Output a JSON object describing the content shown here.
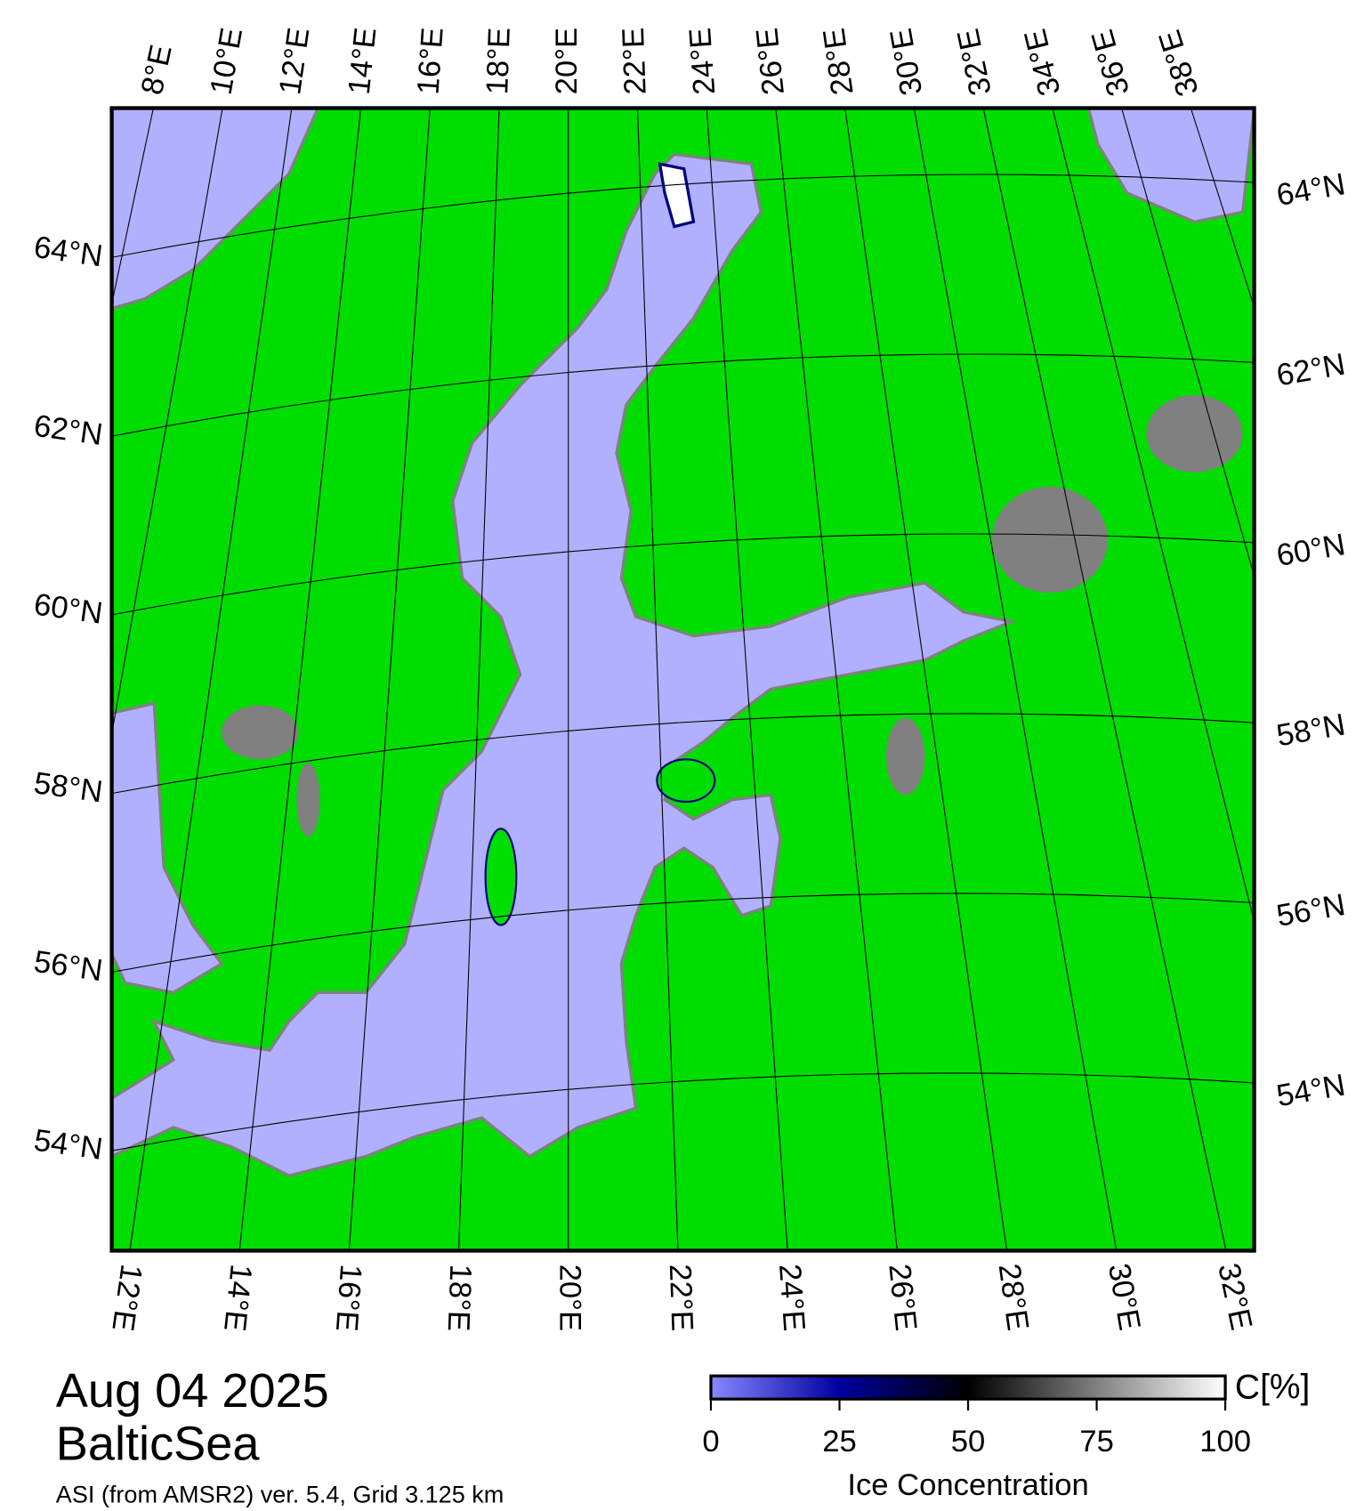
{
  "title": {
    "date": "Aug 04 2025",
    "region": "BalticSea"
  },
  "caption": "ASI (from AMSR2) ver. 5.4,  Grid 3.125 km",
  "map": {
    "top_longitude_labels": [
      "8°E",
      "10°E",
      "12°E",
      "14°E",
      "16°E",
      "18°E",
      "20°E",
      "22°E",
      "24°E",
      "26°E",
      "28°E",
      "30°E",
      "32°E",
      "34°E",
      "36°E",
      "38°E"
    ],
    "bottom_longitude_labels": [
      "12°E",
      "14°E",
      "16°E",
      "18°E",
      "20°E",
      "22°E",
      "24°E",
      "26°E",
      "28°E",
      "30°E",
      "32°E"
    ],
    "left_latitude_labels": [
      "64°N",
      "62°N",
      "60°N",
      "58°N",
      "56°N",
      "54°N"
    ],
    "right_latitude_labels": [
      "64°N",
      "62°N",
      "60°N",
      "58°N",
      "56°N",
      "54°N"
    ]
  },
  "colorbar": {
    "ticks": [
      0,
      25,
      50,
      75,
      100
    ],
    "unit": "C[%]",
    "label": "Ice Concentration"
  }
}
